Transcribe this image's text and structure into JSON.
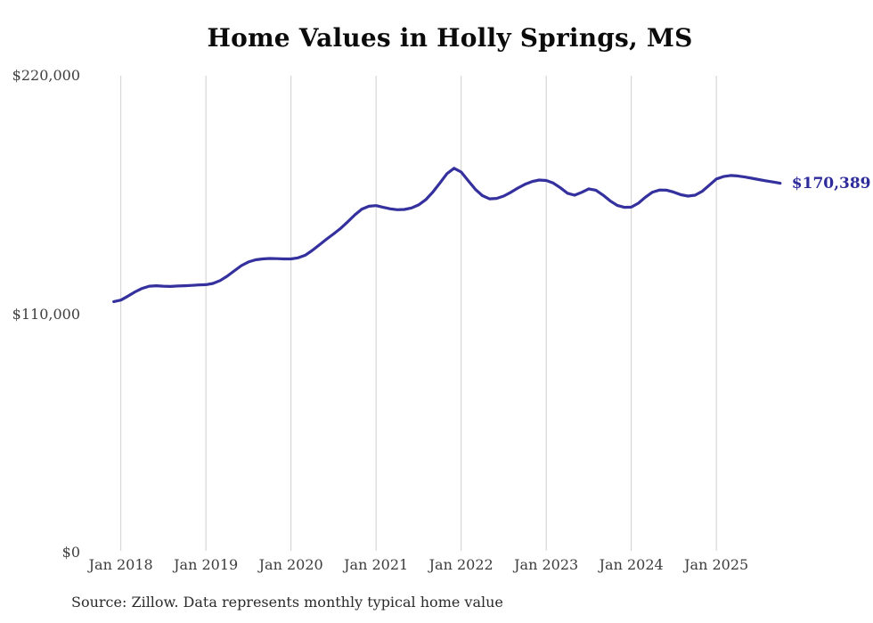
{
  "chart_data": {
    "type": "line",
    "title": "Home Values in Holly Springs, MS",
    "source_note": "Source: Zillow. Data represents monthly typical home value",
    "series_name": "Monthly typical home value",
    "end_label": "$170,389",
    "end_value": 170389,
    "ylim": [
      0,
      220000
    ],
    "grid": "vertical-only",
    "legend": "none",
    "y_ticks": [
      {
        "value": 220000,
        "label": "$220,000"
      },
      {
        "value": 110000,
        "label": "$110,000"
      },
      {
        "value": 0,
        "label": "$0"
      }
    ],
    "x_tick_labels": [
      "Jan 2018",
      "Jan 2019",
      "Jan 2020",
      "Jan 2021",
      "Jan 2022",
      "Jan 2023",
      "Jan 2024",
      "Jan 2025"
    ],
    "colors": {
      "line": "#34309e",
      "end_label": "#2e2b9b",
      "grid": "#cfcfcf",
      "axis_text": "#3d3d3d",
      "title_text": "#0b0b0b",
      "source_text": "#2b2b2b",
      "background": "#ffffff"
    },
    "x": [
      "Dec 2017",
      "Jan 2018",
      "Feb 2018",
      "Mar 2018",
      "Apr 2018",
      "May 2018",
      "Jun 2018",
      "Jul 2018",
      "Aug 2018",
      "Sep 2018",
      "Oct 2018",
      "Nov 2018",
      "Dec 2018",
      "Jan 2019",
      "Feb 2019",
      "Mar 2019",
      "Apr 2019",
      "May 2019",
      "Jun 2019",
      "Jul 2019",
      "Aug 2019",
      "Sep 2019",
      "Oct 2019",
      "Nov 2019",
      "Dec 2019",
      "Jan 2020",
      "Feb 2020",
      "Mar 2020",
      "Apr 2020",
      "May 2020",
      "Jun 2020",
      "Jul 2020",
      "Aug 2020",
      "Sep 2020",
      "Oct 2020",
      "Nov 2020",
      "Dec 2020",
      "Jan 2021",
      "Feb 2021",
      "Mar 2021",
      "Apr 2021",
      "May 2021",
      "Jun 2021",
      "Jul 2021",
      "Aug 2021",
      "Sep 2021",
      "Oct 2021",
      "Nov 2021",
      "Dec 2021",
      "Jan 2022",
      "Feb 2022",
      "Mar 2022",
      "Apr 2022",
      "May 2022",
      "Jun 2022",
      "Jul 2022",
      "Aug 2022",
      "Sep 2022",
      "Oct 2022",
      "Nov 2022",
      "Dec 2022",
      "Jan 2023",
      "Feb 2023",
      "Mar 2023",
      "Apr 2023",
      "May 2023",
      "Jun 2023",
      "Jul 2023",
      "Aug 2023",
      "Sep 2023",
      "Oct 2023",
      "Nov 2023",
      "Dec 2023",
      "Jan 2024",
      "Feb 2024",
      "Mar 2024",
      "Apr 2024",
      "May 2024",
      "Jun 2024",
      "Jul 2024",
      "Aug 2024",
      "Sep 2024",
      "Oct 2024",
      "Nov 2024",
      "Dec 2024",
      "Jan 2025",
      "Feb 2025",
      "Mar 2025",
      "Apr 2025",
      "May 2025",
      "Jun 2025",
      "Jul 2025",
      "Aug 2025",
      "Sep 2025",
      "Oct 2025"
    ],
    "values": [
      115800,
      116500,
      118300,
      120300,
      121900,
      122900,
      123100,
      122900,
      122800,
      123000,
      123100,
      123300,
      123500,
      123600,
      124200,
      125500,
      127500,
      130000,
      132400,
      134100,
      135100,
      135500,
      135700,
      135600,
      135500,
      135500,
      136000,
      137200,
      139400,
      142000,
      144600,
      147000,
      149600,
      152600,
      155800,
      158500,
      159800,
      160100,
      159300,
      158600,
      158200,
      158300,
      159000,
      160400,
      162800,
      166300,
      170500,
      174800,
      177300,
      175600,
      171600,
      167600,
      164700,
      163200,
      163400,
      164500,
      166200,
      168200,
      169900,
      171200,
      171900,
      171700,
      170500,
      168300,
      165800,
      164900,
      166200,
      167800,
      167200,
      165000,
      162300,
      160200,
      159300,
      159400,
      161200,
      164000,
      166300,
      167300,
      167200,
      166300,
      165100,
      164500,
      164900,
      166700,
      169500,
      172400,
      173500,
      174000,
      173800,
      173300,
      172700,
      172100,
      171500,
      171000,
      170389
    ]
  }
}
